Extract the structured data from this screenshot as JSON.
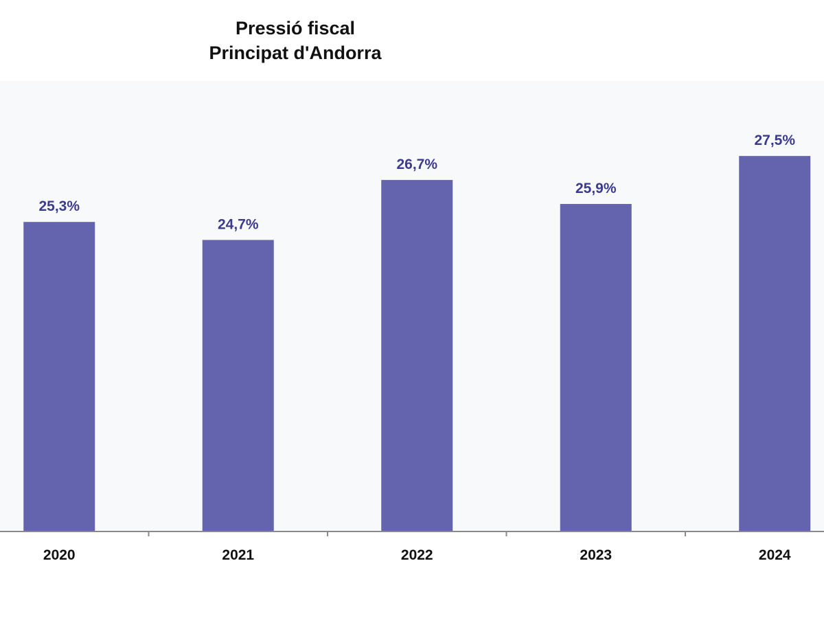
{
  "chart_data": {
    "type": "bar",
    "title": [
      "Pressió fiscal",
      "Principat d'Andorra"
    ],
    "categories": [
      "2020",
      "2021",
      "2022",
      "2023",
      "2024"
    ],
    "values": [
      25.3,
      24.7,
      26.7,
      25.9,
      27.5
    ],
    "data_labels": [
      "25,3%",
      "24,7%",
      "26,7%",
      "25,9%",
      "27,5%"
    ],
    "xlabel": "",
    "ylabel": "",
    "ylim": [
      15,
      30
    ],
    "grid": false,
    "legend": "none",
    "colors": {
      "bar": "#6463ad",
      "data_label": "#3b3a8f",
      "plot_background": "#f8f9fb",
      "axis": "#8a8a8a"
    }
  }
}
